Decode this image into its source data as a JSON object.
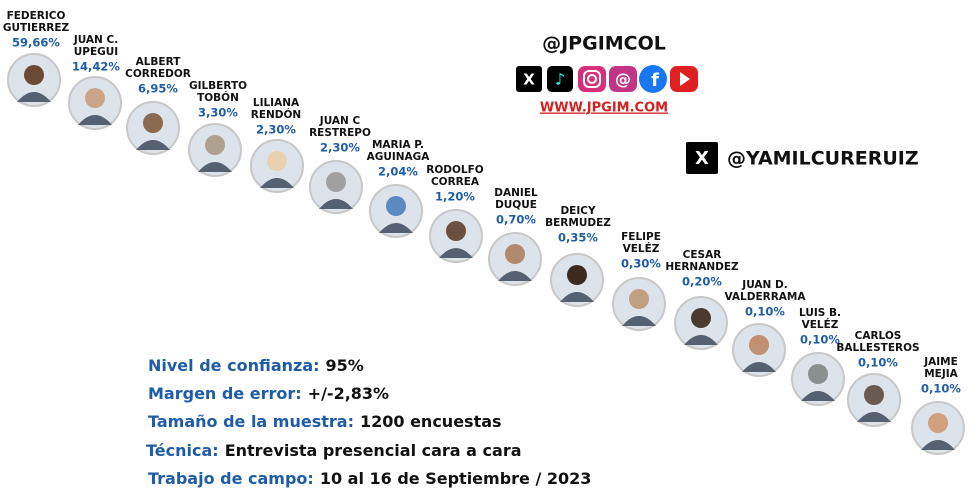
{
  "header": {
    "handle": "@JPGIMCOL",
    "website": "WWW.JPGIM.COM",
    "x_handle": "@YAMILCURERUIZ"
  },
  "candidates": [
    {
      "name": [
        "FEDERICO",
        "GUTIERREZ"
      ],
      "percent": "59,66%"
    },
    {
      "name": [
        "JUAN C.",
        "UPEGUI"
      ],
      "percent": "14,42%"
    },
    {
      "name": [
        "ALBERT",
        "CORREDOR"
      ],
      "percent": "6,95%"
    },
    {
      "name": [
        "GILBERTO",
        "TOBÓN"
      ],
      "percent": "3,30%"
    },
    {
      "name": [
        "LILIANA",
        "RENDÓN"
      ],
      "percent": "2,30%"
    },
    {
      "name": [
        "JUAN C",
        "RESTREPO"
      ],
      "percent": "2,30%"
    },
    {
      "name": [
        "MARIA P.",
        "AGUINAGA"
      ],
      "percent": "2,04%"
    },
    {
      "name": [
        "RODOLFO",
        "CORREA"
      ],
      "percent": "1,20%"
    },
    {
      "name": [
        "DANIEL",
        "DUQUE"
      ],
      "percent": "0,70%"
    },
    {
      "name": [
        "DEICY",
        "BERMUDEZ"
      ],
      "percent": "0,35%"
    },
    {
      "name": [
        "FELIPE",
        "VELÉZ"
      ],
      "percent": "0,30%"
    },
    {
      "name": [
        "CESAR",
        "HERNANDEZ"
      ],
      "percent": "0,20%"
    },
    {
      "name": [
        "JUAN D.",
        "VALDERRAMA"
      ],
      "percent": "0,10%"
    },
    {
      "name": [
        "LUIS B.",
        "VELÉZ"
      ],
      "percent": "0,10%"
    },
    {
      "name": [
        "CARLOS",
        "BALLESTEROS"
      ],
      "percent": "0,10%"
    },
    {
      "name": [
        "JAIME",
        "MEJIA"
      ],
      "percent": "0,10%"
    }
  ],
  "info": [
    {
      "label": "Nivel de confianza:",
      "value": "95%"
    },
    {
      "label": "Margen de error:",
      "value": "+/-2,83%"
    },
    {
      "label": "Tamaño de la muestra:",
      "value": "1200 encuestas"
    },
    {
      "label": "Técnica:",
      "value": "Entrevista presencial cara a cara"
    },
    {
      "label": "Trabajo de campo:",
      "value": "10 al 16 de Septiembre / 2023"
    }
  ]
}
